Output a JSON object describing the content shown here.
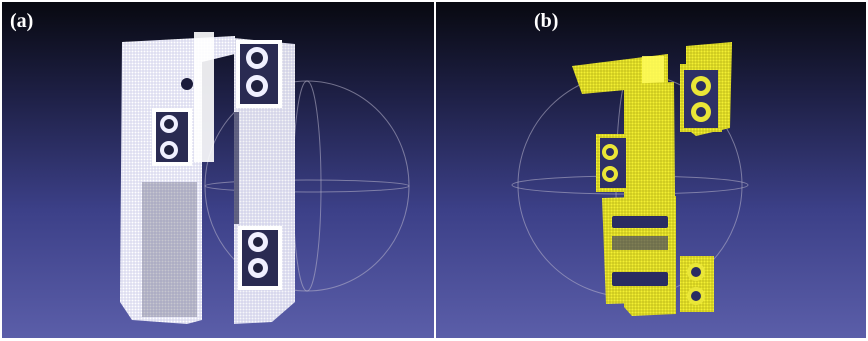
{
  "panels": [
    {
      "label": "(a)",
      "cloud_color": "#f2f3ff",
      "highlight_color": "#ffffff"
    },
    {
      "label": "(b)",
      "cloud_color": "#e3e02a",
      "highlight_color": "#fffb5a"
    }
  ],
  "colors": {
    "background_top": "#080910",
    "background_bottom": "#5b5ea9",
    "trackball": "#b9b6cc",
    "hole": "#14152a"
  }
}
